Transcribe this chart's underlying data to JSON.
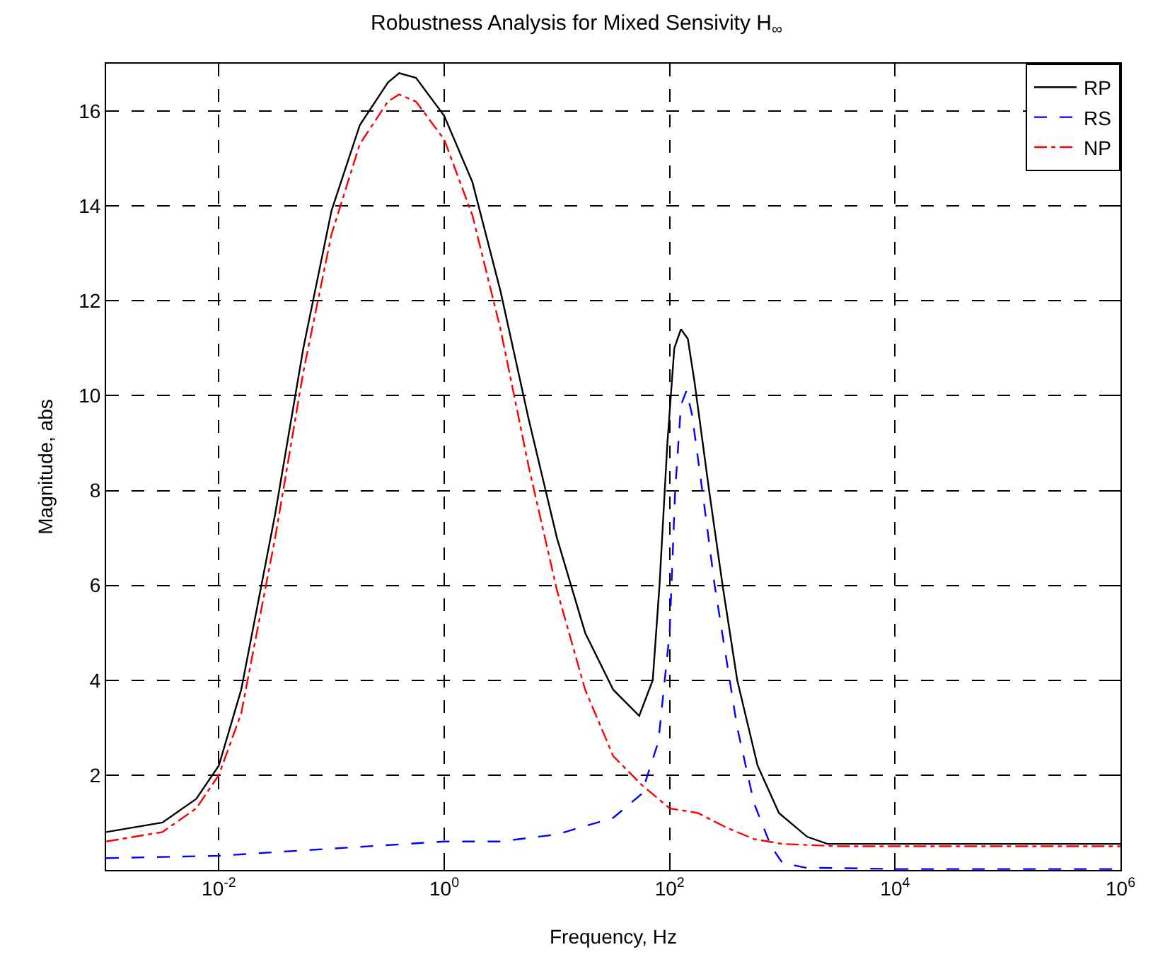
{
  "chart_data": {
    "type": "line",
    "title": "Robustness Analysis for Mixed Sensivity H$_{∞}$",
    "xlabel": "Frequency, Hz",
    "ylabel": "Magnitude, abs",
    "log": "x",
    "grid": true,
    "legend": "top right",
    "marker": "none",
    "xlim": [
      0.001,
      1000000
    ],
    "xticks": [
      {
        "value": 0.01,
        "label": "10$^{-2}$"
      },
      {
        "value": 1,
        "label": "10$^{0}$"
      },
      {
        "value": 100,
        "label": "10$^{2}$"
      },
      {
        "value": 10000,
        "label": "10$^{4}$"
      },
      {
        "value": 1000000,
        "label": "10$^{6}$"
      }
    ],
    "ylim": [
      0,
      17
    ],
    "yticks": [
      2,
      4,
      6,
      8,
      10,
      12,
      14,
      16
    ],
    "series": [
      {
        "name": "RP",
        "color": "#000000",
        "line_style": "solid",
        "x": [
          0.001,
          0.00316,
          0.00631,
          0.01,
          0.0158,
          0.0316,
          0.0562,
          0.1,
          0.178,
          0.316,
          0.398,
          0.562,
          1,
          1.78,
          3.16,
          5.62,
          10,
          17.8,
          31.6,
          53.7,
          70.8,
          81.3,
          95.5,
          110,
          126,
          145,
          166,
          224,
          295,
          398,
          603,
          933,
          1660,
          2512,
          10000,
          1000000
        ],
        "values": [
          0.8,
          1.0,
          1.5,
          2.2,
          3.8,
          7.5,
          11,
          13.9,
          15.7,
          16.6,
          16.8,
          16.7,
          15.9,
          14.5,
          12.2,
          9.5,
          7,
          5,
          3.8,
          3.25,
          4.0,
          6,
          9,
          11,
          11.4,
          11.2,
          10.3,
          8,
          6,
          4,
          2.2,
          1.2,
          0.7,
          0.55,
          0.55,
          0.55
        ]
      },
      {
        "name": "RS",
        "color": "#0000ff",
        "line_style": "dashed",
        "x": [
          0.001,
          0.01,
          0.1,
          1,
          3.16,
          10,
          31.6,
          56.2,
          79.4,
          100,
          112,
          126,
          141,
          158,
          200,
          251,
          316,
          398,
          562,
          794,
          1000,
          1585,
          10000,
          1000000
        ],
        "values": [
          0.25,
          0.3,
          0.45,
          0.6,
          0.6,
          0.75,
          1.1,
          1.6,
          2.7,
          5,
          8,
          9.8,
          10.1,
          9.6,
          7.8,
          6,
          4.5,
          3,
          1.4,
          0.5,
          0.15,
          0.05,
          0.02,
          0.02
        ]
      },
      {
        "name": "NP",
        "color": "#ff0000",
        "line_style": "dashdot",
        "x": [
          0.001,
          0.00316,
          0.00631,
          0.01,
          0.0158,
          0.0316,
          0.0562,
          0.1,
          0.178,
          0.316,
          0.398,
          0.562,
          1,
          1.78,
          3.16,
          5.62,
          10,
          17.8,
          31.6,
          56.2,
          100,
          178,
          316,
          562,
          1000,
          3162,
          1000000
        ],
        "values": [
          0.6,
          0.8,
          1.3,
          2.0,
          3.3,
          7.0,
          10.5,
          13.4,
          15.3,
          16.2,
          16.35,
          16.2,
          15.4,
          13.8,
          11.4,
          8.5,
          5.9,
          3.8,
          2.4,
          1.8,
          1.3,
          1.2,
          0.9,
          0.65,
          0.55,
          0.5,
          0.5
        ]
      }
    ]
  }
}
